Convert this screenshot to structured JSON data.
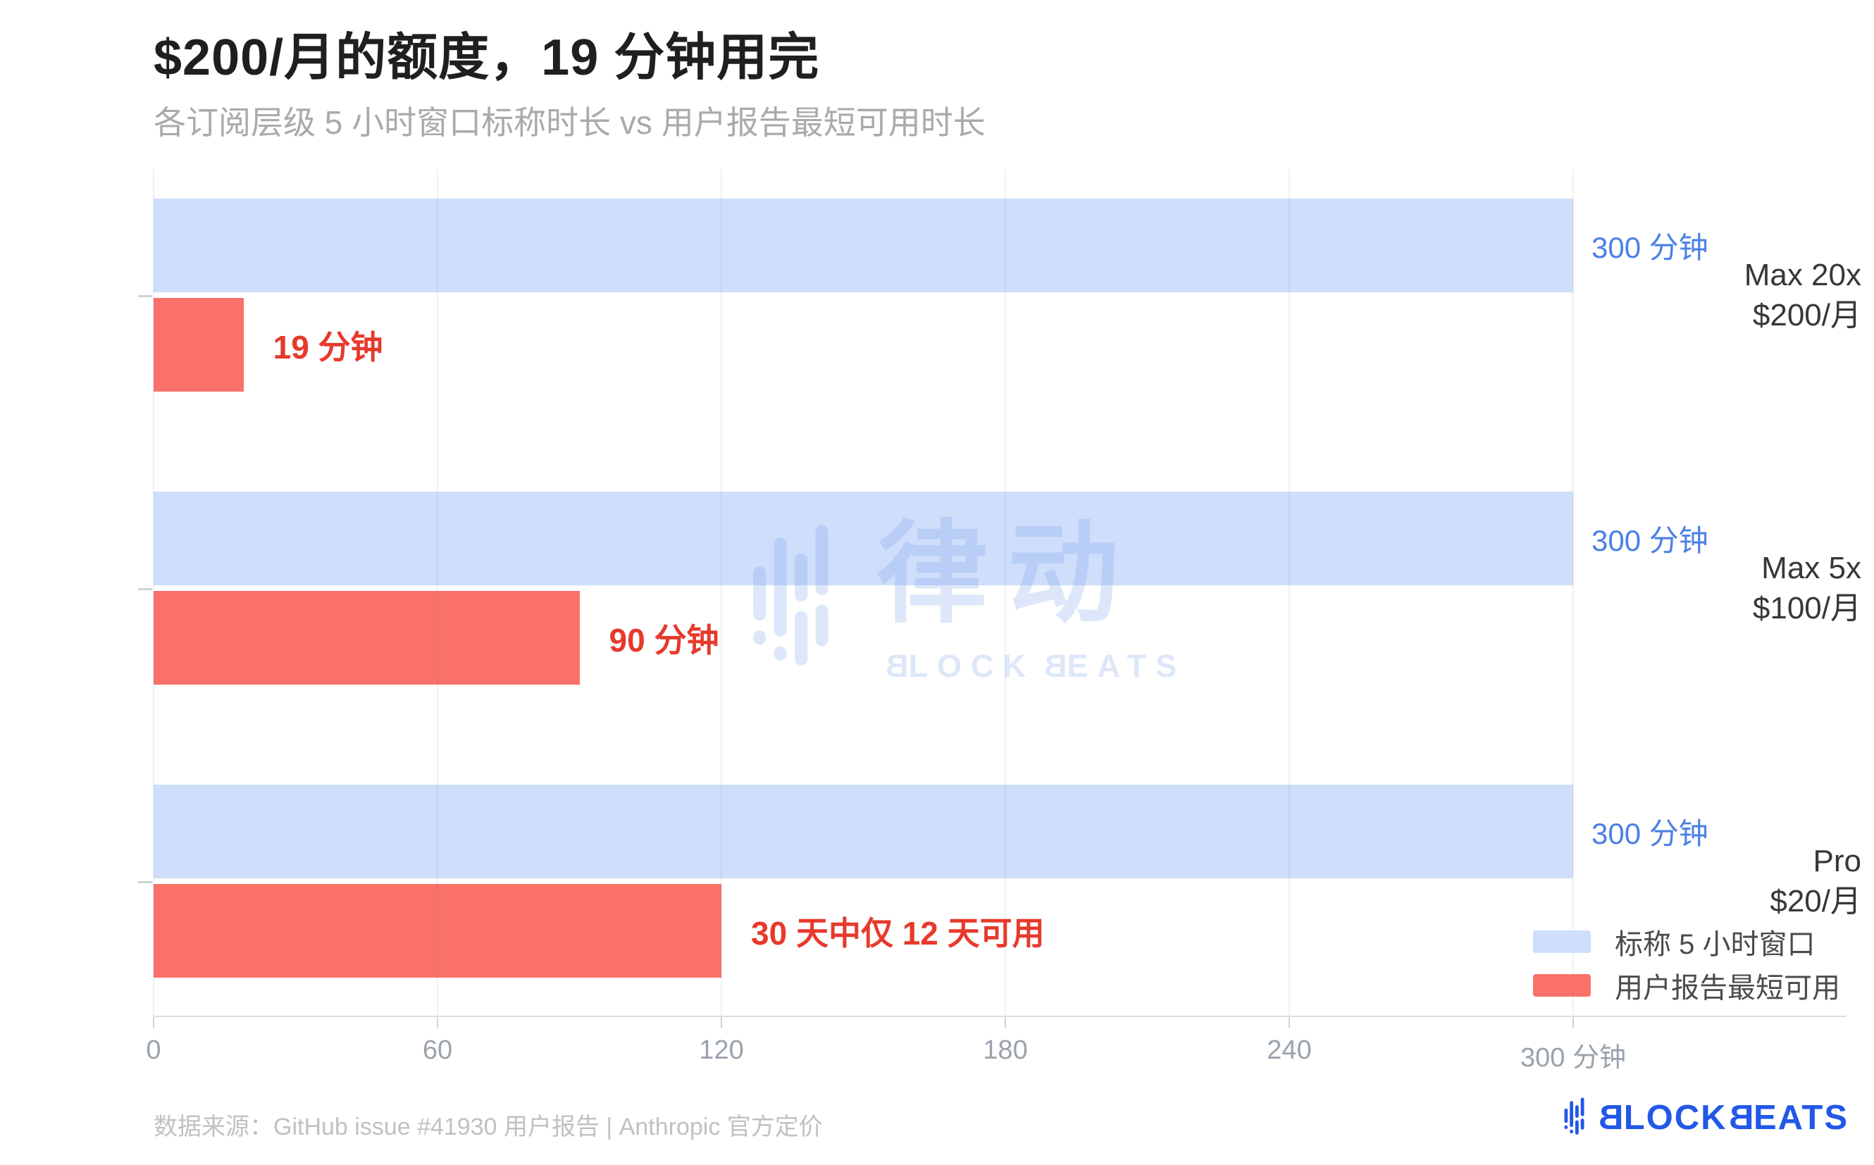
{
  "header": {
    "title": "$200/月的额度，19 分钟用完",
    "subtitle": "各订阅层级 5 小时窗口标称时长 vs 用户报告最短可用时长"
  },
  "chart_data": {
    "type": "bar",
    "orientation": "horizontal",
    "title": "$200/月的额度，19 分钟用完",
    "subtitle": "各订阅层级 5 小时窗口标称时长 vs 用户报告最短可用时长",
    "categories": [
      [
        "Max 20x",
        "$200/月"
      ],
      [
        "Max 5x",
        "$100/月"
      ],
      [
        "Pro",
        "$20/月"
      ]
    ],
    "series": [
      {
        "name": "标称 5 小时窗口",
        "color": "#cfdefb",
        "values": [
          300,
          300,
          300
        ],
        "labels": [
          "300 分钟",
          "300 分钟",
          "300 分钟"
        ],
        "label_color": "#4b80e4"
      },
      {
        "name": "用户报告最短可用",
        "color": "#f97168",
        "values": [
          19,
          90,
          120
        ],
        "labels": [
          "19 分钟",
          "90 分钟",
          "30 天中仅 12 天可用"
        ],
        "label_color": "#e63a2c"
      }
    ],
    "xlim": [
      0,
      300
    ],
    "x_ticks": [
      0,
      60,
      120,
      180,
      240,
      300
    ],
    "x_tick_labels": [
      "0",
      "60",
      "120",
      "180",
      "240",
      "300 分钟"
    ],
    "x_unit": "分钟",
    "grid": "vertical",
    "legend_position": "bottom-right"
  },
  "legend": {
    "items": [
      {
        "label": "标称 5 小时窗口",
        "color": "#cfdefb"
      },
      {
        "label": "用户报告最短可用",
        "color": "#f97168"
      }
    ]
  },
  "watermark": {
    "cn": "律动",
    "en_b": "B",
    "en_lock": "LOCK",
    "en_eats": "EATS"
  },
  "footer": {
    "source": "数据来源：GitHub issue #41930 用户报告 | Anthropic 官方定价"
  },
  "brand": {
    "b": "B",
    "lock": "LOCK",
    "eats": "EATS"
  }
}
